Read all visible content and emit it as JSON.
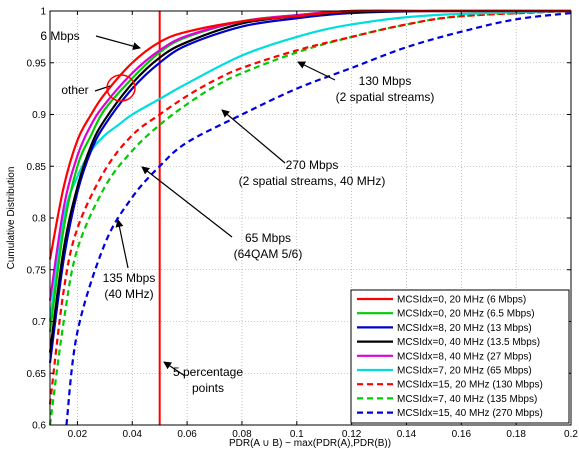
{
  "chart_data": {
    "type": "line",
    "xlabel": "PDR(A ∪ B) − max(PDR(A),PDR(B))",
    "ylabel": "Cumulative Distribution",
    "xlim": [
      0.01,
      0.2
    ],
    "ylim": [
      0.6,
      1.0
    ],
    "xticks": [
      0.02,
      0.04,
      0.06,
      0.08,
      0.1,
      0.12,
      0.14,
      0.16,
      0.18,
      0.2
    ],
    "xtick_labels": [
      "0.02",
      "0.04",
      "0.06",
      "0.08",
      "0.1",
      "0.12",
      "0.14",
      "0.16",
      "0.18",
      "0.2"
    ],
    "yticks": [
      0.6,
      0.65,
      0.7,
      0.75,
      0.8,
      0.85,
      0.9,
      0.95,
      1.0
    ],
    "ytick_labels": [
      "0.6",
      "0.65",
      "0.7",
      "0.75",
      "0.8",
      "0.85",
      "0.9",
      "0.95",
      "1"
    ],
    "grid": true,
    "legend_position": "bottom-right",
    "series": [
      {
        "name": "MCSIdx=0, 20 MHz (6 Mbps)",
        "color": "#ff0000",
        "dash": "solid",
        "x": [
          0.01,
          0.015,
          0.02,
          0.025,
          0.03,
          0.04,
          0.05,
          0.06,
          0.08,
          0.1,
          0.12,
          0.15,
          0.2
        ],
        "y": [
          0.76,
          0.83,
          0.875,
          0.9,
          0.92,
          0.95,
          0.97,
          0.98,
          0.99,
          0.995,
          1.0,
          1.0,
          1.0
        ]
      },
      {
        "name": "MCSIdx=0, 20 MHz (6.5 Mbps)",
        "color": "#00cc00",
        "dash": "solid",
        "x": [
          0.01,
          0.015,
          0.02,
          0.025,
          0.03,
          0.04,
          0.05,
          0.06,
          0.08,
          0.1,
          0.12,
          0.15,
          0.2
        ],
        "y": [
          0.69,
          0.79,
          0.85,
          0.88,
          0.905,
          0.935,
          0.96,
          0.975,
          0.99,
          0.996,
          1.0,
          1.0,
          1.0
        ]
      },
      {
        "name": "MCSIdx=8, 20 MHz (13 Mbps)",
        "color": "#0000cc",
        "dash": "solid",
        "x": [
          0.01,
          0.015,
          0.02,
          0.025,
          0.03,
          0.04,
          0.05,
          0.06,
          0.08,
          0.1,
          0.12,
          0.15,
          0.2
        ],
        "y": [
          0.66,
          0.76,
          0.825,
          0.865,
          0.89,
          0.925,
          0.95,
          0.967,
          0.985,
          0.993,
          0.998,
          1.0,
          1.0
        ]
      },
      {
        "name": "MCSIdx=0, 40 MHz (13.5 Mbps)",
        "color": "#000000",
        "dash": "solid",
        "x": [
          0.01,
          0.015,
          0.02,
          0.025,
          0.03,
          0.04,
          0.05,
          0.06,
          0.08,
          0.1,
          0.12,
          0.15,
          0.2
        ],
        "y": [
          0.67,
          0.77,
          0.83,
          0.87,
          0.895,
          0.93,
          0.955,
          0.97,
          0.988,
          0.995,
          0.999,
          1.0,
          1.0
        ]
      },
      {
        "name": "MCSIdx=8, 40 MHz (27 Mbps)",
        "color": "#dd00dd",
        "dash": "solid",
        "x": [
          0.01,
          0.015,
          0.02,
          0.025,
          0.03,
          0.04,
          0.05,
          0.06,
          0.08,
          0.1,
          0.12,
          0.15,
          0.2
        ],
        "y": [
          0.72,
          0.81,
          0.86,
          0.89,
          0.91,
          0.94,
          0.962,
          0.976,
          0.99,
          0.996,
          1.0,
          1.0,
          1.0
        ]
      },
      {
        "name": "MCSIdx=7, 20 MHz (65 Mbps)",
        "color": "#00dddd",
        "dash": "solid",
        "x": [
          0.01,
          0.015,
          0.02,
          0.025,
          0.03,
          0.035,
          0.04,
          0.05,
          0.06,
          0.08,
          0.1,
          0.12,
          0.15,
          0.2
        ],
        "y": [
          0.7,
          0.8,
          0.84,
          0.865,
          0.88,
          0.89,
          0.9,
          0.915,
          0.93,
          0.957,
          0.975,
          0.987,
          0.996,
          1.0
        ]
      },
      {
        "name": "MCSIdx=15, 20 MHz (130 Mbps)",
        "color": "#ff0000",
        "dash": "dashed",
        "x": [
          0.01,
          0.015,
          0.02,
          0.03,
          0.04,
          0.05,
          0.06,
          0.07,
          0.08,
          0.1,
          0.12,
          0.14,
          0.16,
          0.2
        ],
        "y": [
          0.62,
          0.73,
          0.79,
          0.846,
          0.88,
          0.9,
          0.918,
          0.933,
          0.945,
          0.962,
          0.975,
          0.987,
          0.995,
          1.0
        ]
      },
      {
        "name": "MCSIdx=7, 40 MHz (135 Mbps)",
        "color": "#00cc00",
        "dash": "dashed",
        "x": [
          0.01,
          0.015,
          0.02,
          0.03,
          0.04,
          0.05,
          0.06,
          0.07,
          0.08,
          0.1,
          0.12,
          0.14,
          0.16,
          0.2
        ],
        "y": [
          0.6,
          0.7,
          0.77,
          0.83,
          0.865,
          0.89,
          0.91,
          0.927,
          0.94,
          0.96,
          0.975,
          0.987,
          0.995,
          1.0
        ]
      },
      {
        "name": "MCSIdx=15, 40 MHz (270 Mbps)",
        "color": "#0000dd",
        "dash": "dashed",
        "x": [
          0.016,
          0.02,
          0.03,
          0.04,
          0.05,
          0.06,
          0.08,
          0.1,
          0.12,
          0.14,
          0.16,
          0.18,
          0.2
        ],
        "y": [
          0.6,
          0.69,
          0.775,
          0.82,
          0.85,
          0.873,
          0.9,
          0.925,
          0.945,
          0.965,
          0.98,
          0.992,
          0.998
        ]
      }
    ],
    "vertical_line": {
      "x": 0.05,
      "color": "#ff0000"
    },
    "annotations": [
      {
        "text": "6 Mbps"
      },
      {
        "text": "other"
      },
      {
        "text": "130 Mbps"
      },
      {
        "text": "(2 spatial streams)"
      },
      {
        "text": "270 Mbps"
      },
      {
        "text": "(2 spatial streams, 40 MHz)"
      },
      {
        "text": "65 Mbps"
      },
      {
        "text": "(64QAM 5/6)"
      },
      {
        "text": "135 Mbps"
      },
      {
        "text": "(40 MHz)"
      },
      {
        "text": "5 percentage"
      },
      {
        "text": "points"
      }
    ]
  }
}
